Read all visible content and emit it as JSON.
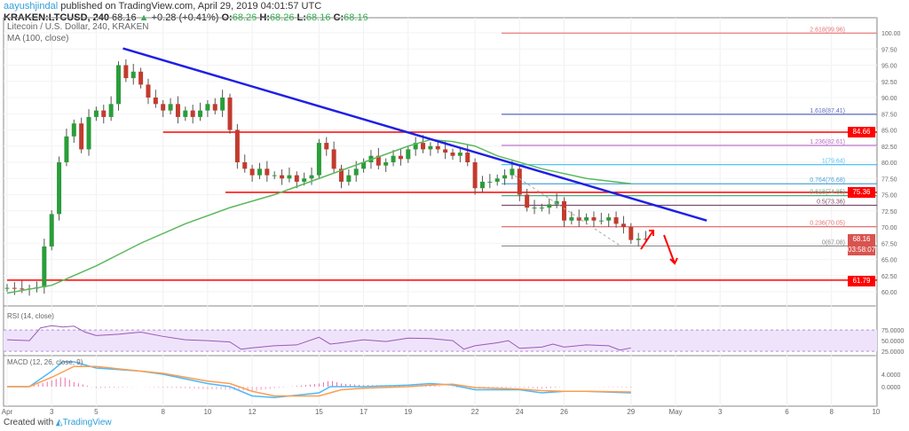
{
  "header": {
    "user": "aayushjindal",
    "published": "published on TradingView.com, April 29, 2019 04:01:57 UTC",
    "symbol": "KRAKEN:LTCUSD, 240",
    "last": "68.16",
    "change": "+0.28 (+0.41%)",
    "o_label": "O:",
    "o": "68.26",
    "h_label": "H:",
    "h": "68.26",
    "l_label": "L:",
    "l": "68.16",
    "c_label": "C:",
    "c": "68.16"
  },
  "legend": {
    "title": "Litecoin / U.S. Dollar, 240, KRAKEN",
    "ma": "MA (100, close)",
    "rsi": "RSI (14, close)",
    "macd": "MACD (12, 26, close, 9)"
  },
  "tags": {
    "price": "68.16",
    "countdown": "03:58:07",
    "r1": "84.66",
    "r2": "75.36",
    "s1": "61.79"
  },
  "footer": {
    "created": "Created with",
    "brand": "TradingView"
  },
  "chart_data": {
    "type": "candlestick",
    "title": "Litecoin / U.S. Dollar, 240, KRAKEN",
    "ylim": [
      59,
      102
    ],
    "price_ticks": [
      "60.00",
      "62.50",
      "65.00",
      "67.50",
      "70.00",
      "72.50",
      "75.00",
      "77.50",
      "80.00",
      "82.50",
      "85.00",
      "87.50",
      "90.00",
      "92.50",
      "95.00",
      "97.50",
      "100.00"
    ],
    "x_ticks": [
      {
        "day": 1,
        "label": "Apr"
      },
      {
        "day": 3,
        "label": "3"
      },
      {
        "day": 5,
        "label": "5"
      },
      {
        "day": 8,
        "label": "8"
      },
      {
        "day": 10,
        "label": "10"
      },
      {
        "day": 12,
        "label": "12"
      },
      {
        "day": 15,
        "label": "15"
      },
      {
        "day": 17,
        "label": "17"
      },
      {
        "day": 19,
        "label": "19"
      },
      {
        "day": 22,
        "label": "22"
      },
      {
        "day": 24,
        "label": "24"
      },
      {
        "day": 26,
        "label": "26"
      },
      {
        "day": 29,
        "label": "29"
      },
      {
        "day": 31,
        "label": "May"
      },
      {
        "day": 33,
        "label": "3"
      },
      {
        "day": 36,
        "label": "6"
      },
      {
        "day": 38,
        "label": "8"
      },
      {
        "day": 40,
        "label": "10"
      }
    ],
    "closes_8h_from_apr1": [
      60.6,
      60.5,
      60.4,
      60.5,
      60.7,
      67,
      72,
      80,
      84,
      86,
      82,
      87,
      88,
      87,
      89,
      95,
      93,
      94,
      92,
      90,
      89,
      88,
      89,
      87,
      88,
      87,
      88,
      89,
      88,
      90,
      85,
      80,
      79,
      78,
      79,
      78,
      78,
      77.5,
      78,
      77,
      77.5,
      78,
      83,
      82,
      79,
      77,
      78,
      79,
      80,
      81,
      79.5,
      80,
      81,
      80.5,
      82,
      83,
      82,
      82.5,
      82,
      81.5,
      81,
      81.5,
      80,
      76,
      77,
      77,
      77.5,
      78,
      79,
      75,
      73,
      73,
      73,
      73.5,
      74,
      71,
      71.5,
      71,
      71.5,
      71,
      71,
      71.5,
      70.5,
      70,
      68,
      68.2,
      68.16
    ],
    "ma100": [
      [
        1,
        59.8
      ],
      [
        3,
        61
      ],
      [
        5,
        64
      ],
      [
        7,
        67.5
      ],
      [
        9,
        70.5
      ],
      [
        11,
        73
      ],
      [
        13,
        75
      ],
      [
        15,
        77.5
      ],
      [
        17,
        80
      ],
      [
        19,
        82.5
      ],
      [
        20,
        83.5
      ],
      [
        21,
        83.2
      ],
      [
        22,
        82.5
      ],
      [
        23,
        81
      ],
      [
        25,
        79
      ],
      [
        27,
        77.5
      ],
      [
        29,
        76.7
      ]
    ],
    "trendline": [
      [
        6.2,
        97.6
      ],
      [
        32.4,
        71
      ]
    ],
    "horizontal_levels": [
      {
        "price": 84.66,
        "from_day": 8
      },
      {
        "price": 75.36,
        "from_day": 10.8
      },
      {
        "price": 61.79,
        "from_day": 1
      }
    ],
    "fib_levels": [
      {
        "label": "2.618(99.96)",
        "price": 99.96,
        "color": "#e57373"
      },
      {
        "label": "1.618(87.41)",
        "price": 87.41,
        "color": "#5c6bc0"
      },
      {
        "label": "1.236(82.61)",
        "price": 82.61,
        "color": "#ba68c8"
      },
      {
        "label": "1(79.64)",
        "price": 79.64,
        "color": "#4fc3f7"
      },
      {
        "label": "0.764(76.68)",
        "price": 76.68,
        "color": "#4fa3d8"
      },
      {
        "label": "0.618(74.85)",
        "price": 74.85,
        "color": "#4caf80"
      },
      {
        "label": "0.5(73.36)",
        "price": 73.36,
        "color": "#7b4f6b"
      },
      {
        "label": "0.236(70.05)",
        "price": 70.05,
        "color": "#e57373"
      },
      {
        "label": "0(67.08)",
        "price": 67.08,
        "color": "#888888"
      }
    ],
    "rsi": {
      "ticks": [
        "75.0000",
        "50.0000",
        "25.0000"
      ],
      "values": [
        [
          1,
          52
        ],
        [
          2,
          50
        ],
        [
          2.5,
          80
        ],
        [
          3,
          85
        ],
        [
          3.5,
          82
        ],
        [
          4,
          84
        ],
        [
          4.5,
          70
        ],
        [
          5,
          62
        ],
        [
          6,
          65
        ],
        [
          7,
          70
        ],
        [
          8,
          60
        ],
        [
          9,
          52
        ],
        [
          10,
          50
        ],
        [
          11,
          47
        ],
        [
          11.5,
          30
        ],
        [
          12,
          33
        ],
        [
          13,
          38
        ],
        [
          14,
          40
        ],
        [
          15,
          58
        ],
        [
          15.5,
          42
        ],
        [
          16,
          45
        ],
        [
          17,
          52
        ],
        [
          18,
          48
        ],
        [
          19,
          56
        ],
        [
          20,
          55
        ],
        [
          21,
          50
        ],
        [
          21.5,
          30
        ],
        [
          22,
          38
        ],
        [
          23,
          45
        ],
        [
          23.5,
          50
        ],
        [
          24,
          32
        ],
        [
          25,
          35
        ],
        [
          25.5,
          42
        ],
        [
          26,
          35
        ],
        [
          27,
          40
        ],
        [
          28,
          38
        ],
        [
          28.5,
          28
        ],
        [
          29,
          33
        ]
      ]
    },
    "macd": {
      "ticks": [
        "4.0000",
        "0.0000"
      ],
      "macd": [
        [
          1,
          0
        ],
        [
          2,
          0
        ],
        [
          3,
          5
        ],
        [
          3.5,
          8
        ],
        [
          4,
          8
        ],
        [
          5,
          6
        ],
        [
          7,
          5
        ],
        [
          8,
          4
        ],
        [
          10,
          1
        ],
        [
          11,
          0
        ],
        [
          12,
          -3
        ],
        [
          13,
          -3.5
        ],
        [
          15,
          -2
        ],
        [
          15.5,
          0
        ],
        [
          17,
          0
        ],
        [
          19,
          0.5
        ],
        [
          20,
          1
        ],
        [
          21,
          0.5
        ],
        [
          22,
          -1
        ],
        [
          24,
          -1
        ],
        [
          25,
          -2
        ],
        [
          26,
          -1.5
        ],
        [
          27,
          -1.5
        ],
        [
          29,
          -2
        ]
      ],
      "signal": [
        [
          1,
          0
        ],
        [
          2,
          0
        ],
        [
          3,
          3
        ],
        [
          4,
          6.5
        ],
        [
          5,
          6.5
        ],
        [
          7,
          5
        ],
        [
          8,
          4.3
        ],
        [
          10,
          1.8
        ],
        [
          11,
          1
        ],
        [
          12,
          -1.5
        ],
        [
          13,
          -3
        ],
        [
          15,
          -3
        ],
        [
          16,
          -1
        ],
        [
          17,
          -0.5
        ],
        [
          19,
          0
        ],
        [
          20,
          0.5
        ],
        [
          21,
          0.8
        ],
        [
          22,
          -0.3
        ],
        [
          24,
          -0.8
        ],
        [
          25,
          -1.3
        ],
        [
          26,
          -1.5
        ],
        [
          27,
          -1.5
        ],
        [
          29,
          -1.7
        ]
      ]
    }
  }
}
